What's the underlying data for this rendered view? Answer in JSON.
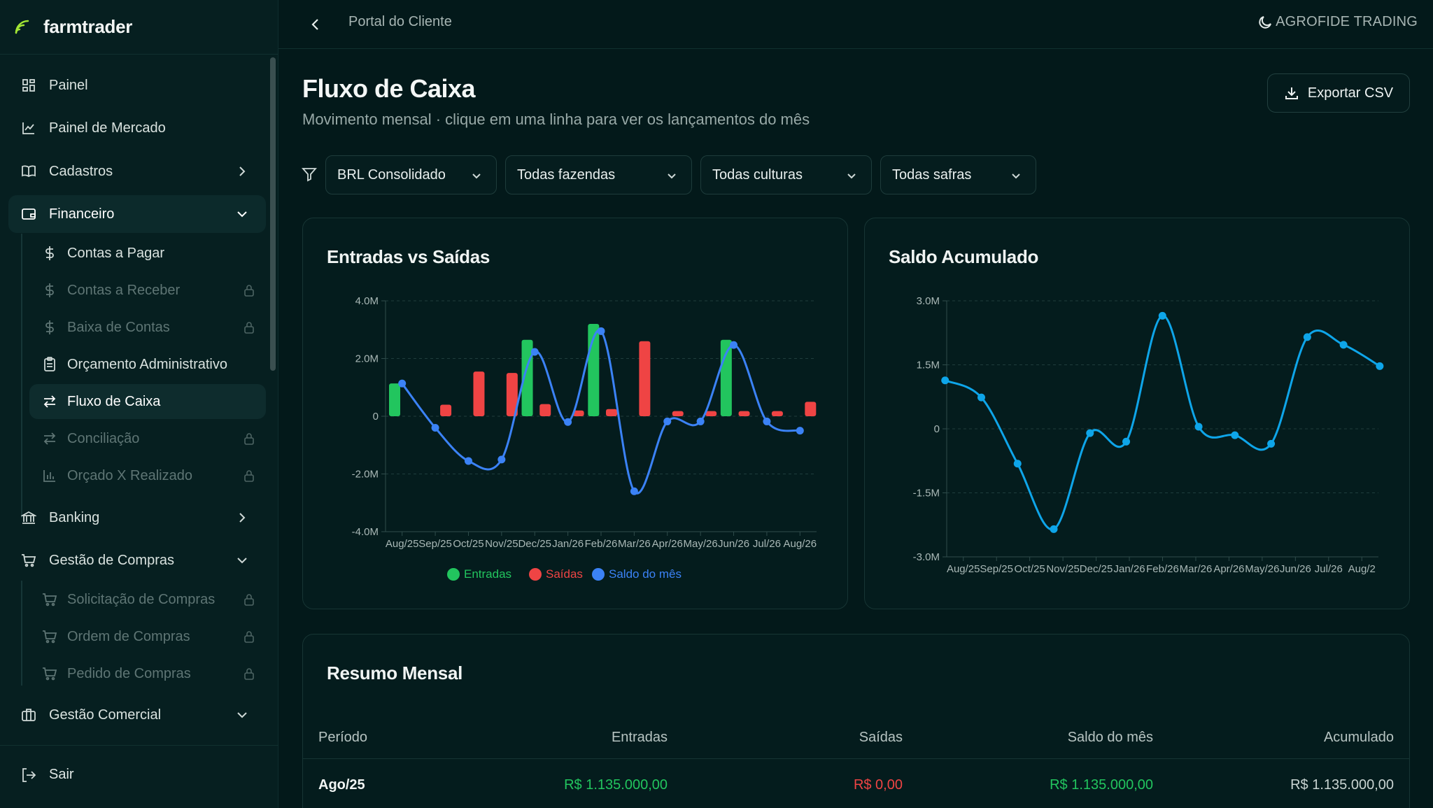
{
  "brand": {
    "name": "farmtrader",
    "icon": "signal-wave-icon",
    "accent": "#a3e635"
  },
  "topbar": {
    "back_icon": "chevron-left-icon",
    "title": "Portal do Cliente",
    "theme_icon": "moon-icon",
    "org": "AGROFIDE TRADING"
  },
  "sidebar": {
    "items": [
      {
        "label": "Painel",
        "icon": "grid-icon"
      },
      {
        "label": "Painel de Mercado",
        "icon": "line-chart-icon"
      },
      {
        "label": "Cadastros",
        "icon": "book-icon"
      },
      {
        "label": "Financeiro",
        "icon": "wallet-icon"
      },
      {
        "label": "Banking",
        "icon": "bank-icon"
      },
      {
        "label": "Gestão de Compras",
        "icon": "cart-icon"
      },
      {
        "label": "Gestão Comercial",
        "icon": "briefcase-icon"
      }
    ],
    "financeiro_sub": [
      {
        "label": "Contas a Pagar"
      },
      {
        "label": "Contas a Receber"
      },
      {
        "label": "Baixa de Contas"
      },
      {
        "label": "Orçamento Administrativo"
      },
      {
        "label": "Fluxo de Caixa"
      },
      {
        "label": "Conciliação"
      },
      {
        "label": "Orçado X Realizado"
      }
    ],
    "compras_sub": [
      {
        "label": "Solicitação de Compras"
      },
      {
        "label": "Ordem de Compras"
      },
      {
        "label": "Pedido de Compras"
      }
    ],
    "logout": "Sair"
  },
  "page": {
    "title": "Fluxo de Caixa",
    "subtitle": "Movimento mensal · clique em uma linha para ver os lançamentos do mês",
    "export_label": "Exportar CSV"
  },
  "filters": {
    "currency": "BRL Consolidado",
    "farm": "Todas fazendas",
    "crop": "Todas culturas",
    "season": "Todas safras"
  },
  "colors": {
    "entradas": "#22c55e",
    "saidas": "#ef4444",
    "saldo": "#3b82f6",
    "acumulado": "#0ea5e9"
  },
  "chart_data": [
    {
      "type": "bar",
      "title": "Entradas vs Saídas",
      "categories": [
        "Aug/25",
        "Sep/25",
        "Oct/25",
        "Nov/25",
        "Dec/25",
        "Jan/26",
        "Feb/26",
        "Mar/26",
        "Apr/26",
        "May/26",
        "Jun/26",
        "Jul/26",
        "Aug/26"
      ],
      "series": [
        {
          "name": "Entradas",
          "values": [
            1.135,
            0,
            0,
            0,
            2.65,
            0,
            3.2,
            0,
            0,
            0,
            2.65,
            0,
            0
          ]
        },
        {
          "name": "Saídas",
          "values": [
            0,
            0.4,
            1.55,
            1.5,
            0.42,
            0.2,
            0.25,
            2.6,
            0.18,
            0.18,
            0.18,
            0.18,
            0.5
          ]
        },
        {
          "name": "Saldo do mês",
          "values": [
            1.135,
            -0.4,
            -1.55,
            -1.5,
            2.23,
            -0.2,
            2.95,
            -2.6,
            -0.18,
            -0.18,
            2.47,
            -0.18,
            -0.5
          ]
        }
      ],
      "ylim": [
        -4,
        4
      ],
      "yticks": [
        "4.0M",
        "2.0M",
        "0",
        "-2.0M",
        "-4.0M"
      ],
      "grid": true,
      "legend": "bottom"
    },
    {
      "type": "line",
      "title": "Saldo Acumulado",
      "categories": [
        "Aug/25",
        "Sep/25",
        "Oct/25",
        "Nov/25",
        "Dec/25",
        "Jan/26",
        "Feb/26",
        "Mar/26",
        "Apr/26",
        "May/26",
        "Jun/26",
        "Jul/26",
        "Aug/2"
      ],
      "series": [
        {
          "name": "Acumulado",
          "values": [
            1.135,
            0.735,
            -0.815,
            -2.35,
            -0.1,
            -0.3,
            2.65,
            0.05,
            -0.15,
            -0.35,
            2.15,
            1.97,
            1.47
          ]
        }
      ],
      "ylim": [
        -3,
        3
      ],
      "yticks": [
        "3.0M",
        "1.5M",
        "0",
        "-1.5M",
        "-3.0M"
      ],
      "grid": true
    }
  ],
  "summary": {
    "title": "Resumo Mensal",
    "columns": [
      "Período",
      "Entradas",
      "Saídas",
      "Saldo do mês",
      "Acumulado"
    ],
    "rows": [
      {
        "period": "Ago/25",
        "entradas": "R$ 1.135.000,00",
        "saidas": "R$ 0,00",
        "saldo": "R$ 1.135.000,00",
        "acumulado": "R$ 1.135.000,00"
      }
    ]
  }
}
